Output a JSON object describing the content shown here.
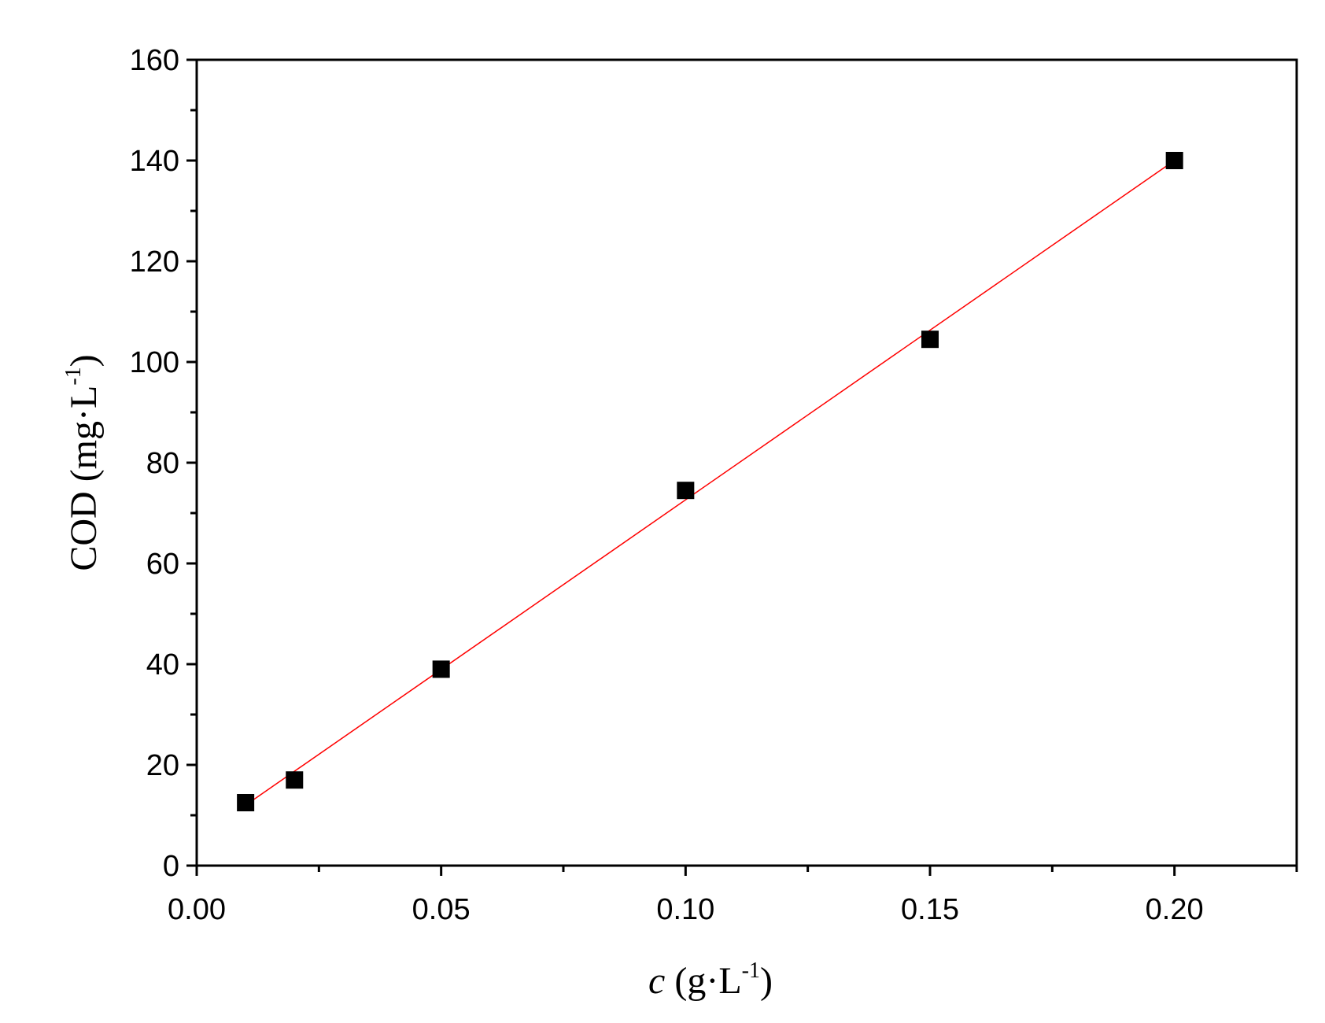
{
  "chart_data": {
    "type": "scatter",
    "xlabel": {
      "var": "c",
      "unit_pre": " (g·L",
      "sup": "-1",
      "unit_post": ")"
    },
    "ylabel": {
      "var": "COD",
      "unit_pre": " (mg·L",
      "sup": "-1",
      "unit_post": ")"
    },
    "xlim": [
      0,
      0.225
    ],
    "ylim": [
      0,
      160
    ],
    "x_major_ticks": [
      0.0,
      0.05,
      0.1,
      0.15,
      0.2
    ],
    "x_tick_labels": [
      "0.00",
      "0.05",
      "0.10",
      "0.15",
      "0.20"
    ],
    "x_minor_ticks": [
      0.025,
      0.075,
      0.125,
      0.175,
      0.225
    ],
    "y_major_ticks": [
      0,
      20,
      40,
      60,
      80,
      100,
      120,
      140,
      160
    ],
    "y_tick_labels": [
      "0",
      "20",
      "40",
      "60",
      "80",
      "100",
      "120",
      "140",
      "160"
    ],
    "y_minor_ticks": [
      10,
      30,
      50,
      70,
      90,
      110,
      130,
      150
    ],
    "grid": false,
    "series": [
      {
        "kind": "points",
        "x": [
          0.01,
          0.02,
          0.05,
          0.1,
          0.15,
          0.2
        ],
        "y": [
          12.5,
          17,
          39,
          74.5,
          104.5,
          140
        ],
        "marker": "square",
        "color": "#000000"
      },
      {
        "kind": "fit-line",
        "x": [
          0.01,
          0.2
        ],
        "y": [
          12,
          140
        ],
        "color": "#ff0000"
      }
    ]
  }
}
